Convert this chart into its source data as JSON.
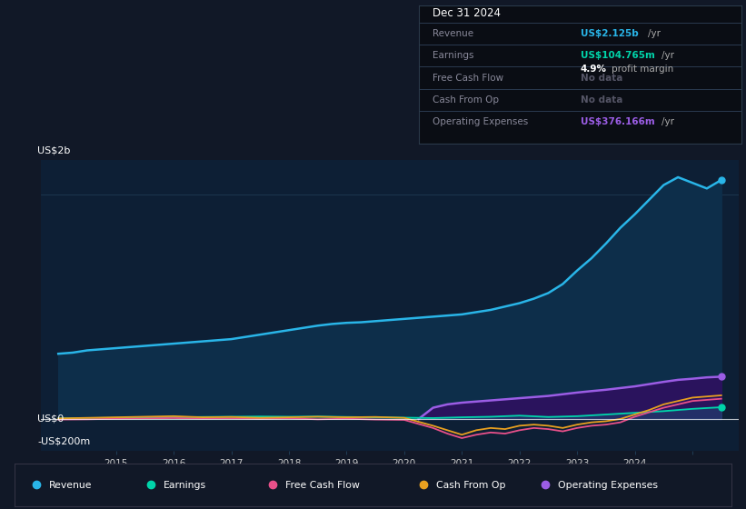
{
  "bg_color": "#111827",
  "plot_bg_color": "#0d1f35",
  "ylabel_top": "US$2b",
  "ylabel_zero": "US$0",
  "ylabel_neg": "-US$200m",
  "ylim": [
    -280000000,
    2300000000
  ],
  "xlim": [
    2013.2,
    2025.3
  ],
  "xtick_positions": [
    2014.5,
    2015.5,
    2016.5,
    2017.5,
    2018.5,
    2019.5,
    2020.5,
    2021.5,
    2022.5,
    2023.5,
    2024.5
  ],
  "xtick_labels": [
    "2015",
    "2016",
    "2017",
    "2018",
    "2019",
    "2020",
    "2021",
    "2022",
    "2023",
    "2024",
    ""
  ],
  "legend": [
    {
      "label": "Revenue",
      "color": "#29b5e8"
    },
    {
      "label": "Earnings",
      "color": "#00d4aa"
    },
    {
      "label": "Free Cash Flow",
      "color": "#e8508a"
    },
    {
      "label": "Cash From Op",
      "color": "#e8a020"
    },
    {
      "label": "Operating Expenses",
      "color": "#9b5de5"
    }
  ],
  "revenue_x": [
    2013.5,
    2013.75,
    2014.0,
    2014.25,
    2014.5,
    2014.75,
    2015.0,
    2015.25,
    2015.5,
    2015.75,
    2016.0,
    2016.25,
    2016.5,
    2016.75,
    2017.0,
    2017.25,
    2017.5,
    2017.75,
    2018.0,
    2018.25,
    2018.5,
    2018.75,
    2019.0,
    2019.25,
    2019.5,
    2019.75,
    2020.0,
    2020.25,
    2020.5,
    2020.75,
    2021.0,
    2021.25,
    2021.5,
    2021.75,
    2022.0,
    2022.25,
    2022.5,
    2022.75,
    2023.0,
    2023.25,
    2023.5,
    2023.75,
    2024.0,
    2024.25,
    2024.5,
    2024.75,
    2025.0
  ],
  "revenue_y": [
    580000000,
    590000000,
    610000000,
    620000000,
    630000000,
    640000000,
    650000000,
    660000000,
    670000000,
    680000000,
    690000000,
    700000000,
    710000000,
    730000000,
    750000000,
    770000000,
    790000000,
    810000000,
    830000000,
    845000000,
    855000000,
    860000000,
    870000000,
    880000000,
    890000000,
    900000000,
    910000000,
    920000000,
    930000000,
    950000000,
    970000000,
    1000000000,
    1030000000,
    1070000000,
    1120000000,
    1200000000,
    1320000000,
    1430000000,
    1560000000,
    1700000000,
    1820000000,
    1950000000,
    2080000000,
    2150000000,
    2100000000,
    2050000000,
    2125000000
  ],
  "earnings_x": [
    2013.5,
    2014.0,
    2014.5,
    2015.0,
    2015.5,
    2016.0,
    2016.5,
    2017.0,
    2017.5,
    2018.0,
    2018.5,
    2019.0,
    2019.5,
    2020.0,
    2020.5,
    2021.0,
    2021.5,
    2022.0,
    2022.5,
    2023.0,
    2023.5,
    2024.0,
    2024.5,
    2025.0
  ],
  "earnings_y": [
    5000000,
    8000000,
    10000000,
    12000000,
    15000000,
    18000000,
    20000000,
    22000000,
    20000000,
    22000000,
    18000000,
    15000000,
    12000000,
    8000000,
    15000000,
    20000000,
    30000000,
    18000000,
    25000000,
    40000000,
    55000000,
    70000000,
    90000000,
    104765000
  ],
  "fcf_x": [
    2013.5,
    2014.0,
    2014.5,
    2015.0,
    2015.5,
    2016.0,
    2016.5,
    2017.0,
    2017.5,
    2018.0,
    2018.5,
    2019.0,
    2019.5,
    2020.0,
    2020.25,
    2020.5,
    2020.75,
    2021.0,
    2021.25,
    2021.5,
    2021.75,
    2022.0,
    2022.25,
    2022.5,
    2022.75,
    2023.0,
    2023.25,
    2023.5,
    2023.75,
    2024.0,
    2024.25,
    2024.5,
    2025.0
  ],
  "fcf_y": [
    -5000000,
    -3000000,
    2000000,
    5000000,
    8000000,
    3000000,
    5000000,
    0,
    5000000,
    -3000000,
    2000000,
    -5000000,
    -8000000,
    -80000000,
    -130000000,
    -170000000,
    -140000000,
    -120000000,
    -130000000,
    -100000000,
    -80000000,
    -90000000,
    -110000000,
    -80000000,
    -60000000,
    -50000000,
    -30000000,
    20000000,
    60000000,
    100000000,
    130000000,
    160000000,
    180000000
  ],
  "cfo_x": [
    2013.5,
    2014.0,
    2014.5,
    2015.0,
    2015.5,
    2016.0,
    2016.5,
    2017.0,
    2017.5,
    2018.0,
    2018.5,
    2019.0,
    2019.5,
    2020.0,
    2020.25,
    2020.5,
    2020.75,
    2021.0,
    2021.25,
    2021.5,
    2021.75,
    2022.0,
    2022.25,
    2022.5,
    2022.75,
    2023.0,
    2023.25,
    2023.5,
    2023.75,
    2024.0,
    2024.25,
    2024.5,
    2025.0
  ],
  "cfo_y": [
    5000000,
    10000000,
    15000000,
    20000000,
    25000000,
    15000000,
    18000000,
    10000000,
    15000000,
    20000000,
    15000000,
    18000000,
    10000000,
    -60000000,
    -100000000,
    -140000000,
    -100000000,
    -80000000,
    -90000000,
    -60000000,
    -50000000,
    -60000000,
    -80000000,
    -50000000,
    -30000000,
    -20000000,
    0,
    40000000,
    80000000,
    130000000,
    160000000,
    190000000,
    210000000
  ],
  "opex_x": [
    2019.75,
    2020.0,
    2020.25,
    2020.5,
    2020.75,
    2021.0,
    2021.25,
    2021.5,
    2021.75,
    2022.0,
    2022.25,
    2022.5,
    2022.75,
    2023.0,
    2023.25,
    2023.5,
    2023.75,
    2024.0,
    2024.25,
    2024.5,
    2024.75,
    2025.0
  ],
  "opex_y": [
    0,
    100000000,
    130000000,
    145000000,
    155000000,
    165000000,
    175000000,
    185000000,
    195000000,
    205000000,
    220000000,
    235000000,
    248000000,
    260000000,
    275000000,
    290000000,
    310000000,
    330000000,
    348000000,
    358000000,
    370000000,
    376166000
  ],
  "revenue_color": "#29b5e8",
  "revenue_fill": "#0d2e4a",
  "earnings_color": "#00d4aa",
  "fcf_color": "#e8508a",
  "cfo_color": "#e8a020",
  "opex_color": "#9b5de5",
  "opex_fill": "#2e1060",
  "grid_color": "#1e3a52",
  "zero_line_color": "#ffffff",
  "text_color_light": "#cccccc",
  "text_color_dim": "#666677"
}
